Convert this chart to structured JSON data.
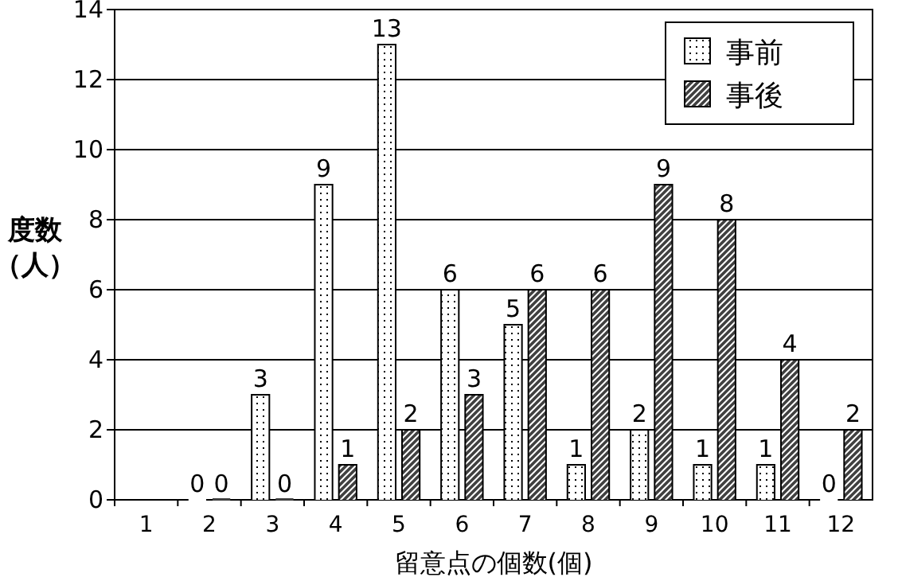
{
  "chart_data": {
    "type": "bar",
    "xlabel": "留意点の個数(個)",
    "ylabel": "度数（人）",
    "categories": [
      "1",
      "2",
      "3",
      "4",
      "5",
      "6",
      "7",
      "8",
      "9",
      "10",
      "11",
      "12"
    ],
    "series": [
      {
        "name": "事前",
        "color": "#ffffff",
        "values": [
          null,
          0,
          3,
          9,
          13,
          6,
          5,
          1,
          2,
          1,
          1,
          0
        ]
      },
      {
        "name": "事後",
        "color": "#404040",
        "values": [
          null,
          0,
          0,
          1,
          2,
          3,
          6,
          6,
          9,
          8,
          4,
          2
        ]
      }
    ],
    "ylim": [
      0,
      14
    ],
    "yticks": [
      0,
      2,
      4,
      6,
      8,
      10,
      12,
      14
    ],
    "grid": "y",
    "legend": "top right",
    "data_labels": true
  }
}
